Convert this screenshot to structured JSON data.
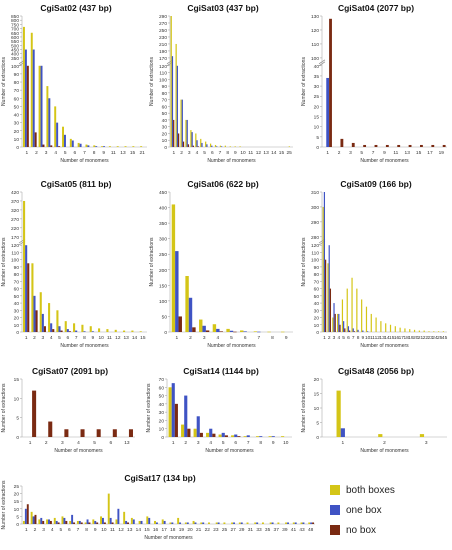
{
  "figure": {
    "xlabel": "Number of monomers",
    "ylabel": "Number of extractions",
    "legend": [
      {
        "label": "both boxes",
        "color": "#d4c517"
      },
      {
        "label": "one box",
        "color": "#3f53c4"
      },
      {
        "label": "no box",
        "color": "#7a2a12"
      }
    ]
  },
  "chart_data": [
    {
      "type": "bar",
      "title": "CgiSat02 (437 bp)",
      "categories": [
        "1",
        "2",
        "3",
        "4",
        "5",
        "6",
        "7",
        "8",
        "9",
        "10",
        "11",
        "12",
        "13",
        "14",
        "15",
        "16"
      ],
      "xticks": [
        "1",
        "2",
        "3",
        "4",
        "5",
        "6",
        "7",
        "8",
        "9",
        "11",
        "13",
        "15",
        "21"
      ],
      "broken_axis": {
        "lower_ticks": [
          0,
          10,
          20,
          30,
          40,
          50,
          60,
          70,
          80,
          90,
          100
        ],
        "upper_ticks": [
          350,
          400,
          450,
          500,
          550,
          600,
          650,
          700,
          750,
          800,
          850
        ]
      },
      "series": [
        {
          "name": "both boxes",
          "values": [
            720,
            650,
            100,
            75,
            50,
            25,
            10,
            5,
            3,
            2,
            1,
            1,
            1,
            1,
            1,
            1
          ]
        },
        {
          "name": "one box",
          "values": [
            450,
            450,
            100,
            60,
            30,
            15,
            8,
            4,
            2,
            1,
            1,
            0,
            0,
            0,
            0,
            0
          ]
        },
        {
          "name": "no box",
          "values": [
            100,
            18,
            3,
            2,
            1,
            0,
            0,
            0,
            0,
            0,
            0,
            0,
            0,
            0,
            0,
            0
          ]
        }
      ]
    },
    {
      "type": "bar",
      "title": "CgiSat03 (437 bp)",
      "categories": [
        "1",
        "2",
        "3",
        "4",
        "5",
        "6",
        "7",
        "8",
        "9",
        "10",
        "11",
        "12",
        "13",
        "14",
        "15",
        "16",
        "17",
        "18",
        "19",
        "20",
        "21",
        "22",
        "23",
        "24",
        "25"
      ],
      "xticks": [
        "1",
        "2",
        "3",
        "4",
        "5",
        "6",
        "7",
        "8",
        "9",
        "10",
        "11",
        "12",
        "13",
        "14",
        "15",
        "25"
      ],
      "broken_axis": {
        "lower_ticks": [
          0,
          10,
          20,
          30,
          40,
          50,
          60,
          70,
          80,
          90,
          100,
          110,
          120
        ],
        "upper_ticks": [
          170,
          190,
          210,
          230,
          250,
          270,
          290
        ]
      },
      "series": [
        {
          "name": "both boxes",
          "values": [
            290,
            210,
            70,
            40,
            25,
            20,
            12,
            8,
            5,
            3,
            2,
            2,
            1,
            1,
            1,
            0,
            0,
            0,
            0,
            0,
            0,
            0,
            0,
            0,
            1
          ]
        },
        {
          "name": "one box",
          "values": [
            175,
            120,
            70,
            40,
            22,
            10,
            6,
            4,
            2,
            1,
            1,
            0,
            0,
            0,
            0,
            0,
            0,
            0,
            0,
            0,
            0,
            0,
            0,
            0,
            0
          ]
        },
        {
          "name": "no box",
          "values": [
            40,
            20,
            8,
            4,
            2,
            1,
            0,
            0,
            0,
            0,
            0,
            0,
            0,
            0,
            0,
            0,
            0,
            0,
            0,
            0,
            0,
            0,
            0,
            0,
            0
          ]
        }
      ]
    },
    {
      "type": "bar",
      "title": "CgiSat04 (2077 bp)",
      "categories": [
        "1",
        "2",
        "3",
        "5",
        "7",
        "9",
        "11",
        "13",
        "15",
        "17",
        "19"
      ],
      "xticks": [
        "1",
        "2",
        "3",
        "5",
        "7",
        "9",
        "11",
        "13",
        "15",
        "17",
        "19"
      ],
      "broken_axis": {
        "lower_ticks": [
          0,
          5,
          10,
          15,
          20,
          25,
          30,
          35,
          40
        ],
        "upper_ticks": [
          100,
          110,
          120,
          130
        ]
      },
      "series": [
        {
          "name": "both boxes",
          "values": [
            0,
            0,
            0,
            0,
            0,
            0,
            0,
            0,
            0,
            0,
            0
          ]
        },
        {
          "name": "one box",
          "values": [
            34,
            0,
            0,
            0,
            0,
            0,
            0,
            0,
            0,
            0,
            0
          ]
        },
        {
          "name": "no box",
          "values": [
            128,
            4,
            2,
            1,
            1,
            1,
            1,
            1,
            1,
            1,
            1
          ]
        }
      ]
    },
    {
      "type": "bar",
      "title": "CgiSat05 (811 bp)",
      "categories": [
        "1",
        "2",
        "3",
        "4",
        "5",
        "6",
        "7",
        "8",
        "9",
        "10",
        "11",
        "12",
        "13",
        "14",
        "15"
      ],
      "xticks": [
        "1",
        "2",
        "3",
        "4",
        "5",
        "6",
        "7",
        "8",
        "9",
        "10",
        "11",
        "12",
        "13",
        "14",
        "15"
      ],
      "broken_axis": {
        "lower_ticks": [
          0,
          10,
          20,
          30,
          40,
          50,
          60,
          70,
          80,
          90,
          100,
          110,
          120
        ],
        "upper_ticks": [
          170,
          220,
          270,
          320,
          370,
          420
        ]
      },
      "series": [
        {
          "name": "both boxes",
          "values": [
            370,
            95,
            55,
            40,
            30,
            15,
            12,
            10,
            8,
            5,
            4,
            3,
            2,
            2,
            1
          ]
        },
        {
          "name": "one box",
          "values": [
            120,
            50,
            25,
            12,
            8,
            4,
            2,
            1,
            1,
            0,
            0,
            0,
            0,
            0,
            0
          ]
        },
        {
          "name": "no box",
          "values": [
            95,
            30,
            8,
            4,
            2,
            1,
            0,
            0,
            0,
            0,
            0,
            0,
            0,
            0,
            0
          ]
        }
      ]
    },
    {
      "type": "bar",
      "title": "CgiSat06 (622 bp)",
      "categories": [
        "1",
        "2",
        "3",
        "4",
        "5",
        "6",
        "7",
        "8",
        "9"
      ],
      "xticks": [
        "1",
        "2",
        "3",
        "4",
        "5",
        "6",
        "7",
        "8",
        "9"
      ],
      "yticks": [
        0,
        50,
        100,
        150,
        200,
        250,
        300,
        350,
        400,
        450
      ],
      "ylim": [
        0,
        450
      ],
      "series": [
        {
          "name": "both boxes",
          "values": [
            410,
            180,
            40,
            25,
            10,
            5,
            2,
            1,
            1
          ]
        },
        {
          "name": "one box",
          "values": [
            260,
            110,
            20,
            10,
            4,
            2,
            1,
            0,
            0
          ]
        },
        {
          "name": "no box",
          "values": [
            50,
            15,
            5,
            2,
            1,
            0,
            0,
            0,
            0
          ]
        }
      ]
    },
    {
      "type": "bar",
      "title": "CgiSat09 (166 bp)",
      "categories": [
        "1",
        "2",
        "3",
        "4",
        "5",
        "6",
        "7",
        "8",
        "9",
        "10",
        "11",
        "12",
        "13",
        "14",
        "15",
        "16",
        "17",
        "18",
        "19",
        "20",
        "21",
        "22",
        "23",
        "24",
        "25",
        "45"
      ],
      "xticks": [
        "1",
        "2",
        "3",
        "4",
        "5",
        "6",
        "7",
        "8",
        "9",
        "10",
        "11",
        "12",
        "13",
        "14",
        "15",
        "16",
        "17",
        "18",
        "19",
        "20",
        "21",
        "22",
        "23",
        "24",
        "25",
        "45"
      ],
      "broken_axis": {
        "lower_ticks": [
          0,
          10,
          20,
          30,
          40,
          50,
          60,
          70,
          80,
          90,
          100,
          110,
          120
        ],
        "upper_ticks": [
          280,
          290,
          300,
          310
        ]
      },
      "series": [
        {
          "name": "both boxes",
          "values": [
            300,
            95,
            20,
            25,
            45,
            60,
            75,
            60,
            45,
            35,
            25,
            20,
            15,
            12,
            10,
            8,
            6,
            5,
            4,
            3,
            2,
            2,
            1,
            1,
            1,
            1
          ]
        },
        {
          "name": "one box",
          "values": [
            310,
            120,
            40,
            25,
            15,
            8,
            5,
            3,
            2,
            1,
            0,
            0,
            0,
            0,
            0,
            0,
            0,
            0,
            0,
            0,
            0,
            0,
            0,
            0,
            0,
            0
          ]
        },
        {
          "name": "no box",
          "values": [
            100,
            60,
            25,
            10,
            5,
            2,
            1,
            0,
            0,
            0,
            0,
            0,
            0,
            0,
            0,
            0,
            0,
            0,
            0,
            0,
            0,
            0,
            0,
            0,
            0,
            0
          ]
        }
      ]
    },
    {
      "type": "bar",
      "title": "CgiSat07 (2091 bp)",
      "categories": [
        "1",
        "2",
        "3",
        "4",
        "5",
        "6",
        "13"
      ],
      "xticks": [
        "1",
        "2",
        "3",
        "4",
        "5",
        "6",
        "13"
      ],
      "yticks": [
        0,
        5,
        10,
        15
      ],
      "ylim": [
        0,
        15
      ],
      "series": [
        {
          "name": "both boxes",
          "values": [
            0,
            0,
            0,
            0,
            0,
            0,
            0
          ]
        },
        {
          "name": "one box",
          "values": [
            0,
            0,
            0,
            0,
            0,
            0,
            0
          ]
        },
        {
          "name": "no box",
          "values": [
            12,
            4,
            2,
            2,
            2,
            2,
            2
          ]
        }
      ]
    },
    {
      "type": "bar",
      "title": "CgiSat14 (1144 bp)",
      "categories": [
        "1",
        "2",
        "3",
        "4",
        "5",
        "6",
        "7",
        "8",
        "9",
        "10"
      ],
      "xticks": [
        "1",
        "2",
        "3",
        "4",
        "5",
        "6",
        "7",
        "8",
        "9",
        "10"
      ],
      "yticks": [
        0,
        10,
        20,
        30,
        40,
        50,
        60,
        70
      ],
      "ylim": [
        0,
        70
      ],
      "series": [
        {
          "name": "both boxes",
          "values": [
            60,
            15,
            10,
            5,
            3,
            2,
            1,
            1,
            1,
            1
          ]
        },
        {
          "name": "one box",
          "values": [
            65,
            50,
            25,
            10,
            5,
            3,
            2,
            1,
            1,
            0
          ]
        },
        {
          "name": "no box",
          "values": [
            40,
            10,
            5,
            4,
            2,
            1,
            0,
            0,
            0,
            0
          ]
        }
      ]
    },
    {
      "type": "bar",
      "title": "CgiSat48 (2056 bp)",
      "categories": [
        "1",
        "2",
        "3"
      ],
      "xticks": [
        "1",
        "2",
        "3"
      ],
      "yticks": [
        0,
        5,
        10,
        15,
        20
      ],
      "ylim": [
        0,
        20
      ],
      "series": [
        {
          "name": "both boxes",
          "values": [
            16,
            1,
            1
          ]
        },
        {
          "name": "one box",
          "values": [
            3,
            0,
            0
          ]
        },
        {
          "name": "no box",
          "values": [
            0,
            0,
            0
          ]
        }
      ]
    },
    {
      "type": "bar",
      "title": "CgiSat17 (134 bp)",
      "categories": [
        "1",
        "2",
        "3",
        "4",
        "5",
        "6",
        "7",
        "8",
        "9",
        "10",
        "11",
        "12",
        "13",
        "14",
        "15",
        "16",
        "17",
        "18",
        "19",
        "20",
        "21",
        "22",
        "23",
        "24",
        "25",
        "26",
        "27",
        "28",
        "29",
        "30",
        "31",
        "33",
        "35",
        "37",
        "39",
        "41",
        "43",
        "48"
      ],
      "xticks": [
        "1",
        "2",
        "3",
        "4",
        "5",
        "6",
        "7",
        "8",
        "9",
        "10",
        "11",
        "12",
        "13",
        "14",
        "15",
        "16",
        "17",
        "18",
        "19",
        "20",
        "21",
        "22",
        "23",
        "25",
        "27",
        "29",
        "31",
        "33",
        "35",
        "37",
        "39",
        "41",
        "43",
        "48"
      ],
      "yticks": [
        0,
        5,
        10,
        15,
        20,
        25
      ],
      "ylim": [
        0,
        25
      ],
      "series": [
        {
          "name": "both boxes",
          "values": [
            2,
            8,
            3,
            3,
            4,
            5,
            2,
            2,
            1,
            3,
            5,
            20,
            3,
            8,
            4,
            2,
            5,
            2,
            3,
            1,
            4,
            1,
            2,
            1,
            1,
            1,
            1,
            1,
            1,
            1,
            1,
            1,
            1,
            1,
            1,
            1,
            1,
            1
          ]
        },
        {
          "name": "one box",
          "values": [
            10,
            5,
            4,
            3,
            2,
            4,
            6,
            2,
            3,
            2,
            4,
            4,
            10,
            2,
            3,
            2,
            4,
            1,
            2,
            1,
            1,
            1,
            1,
            1,
            0,
            1,
            0,
            1,
            1,
            0,
            1,
            0,
            1,
            0,
            1,
            1,
            1,
            1
          ]
        },
        {
          "name": "no box",
          "values": [
            13,
            6,
            2,
            2,
            1,
            2,
            1,
            1,
            1,
            1,
            1,
            1,
            0,
            1,
            0,
            0,
            0,
            0,
            0,
            0,
            0,
            0,
            0,
            0,
            0,
            0,
            0,
            0,
            0,
            0,
            0,
            0,
            0,
            0,
            0,
            0,
            0,
            1
          ]
        }
      ]
    }
  ]
}
